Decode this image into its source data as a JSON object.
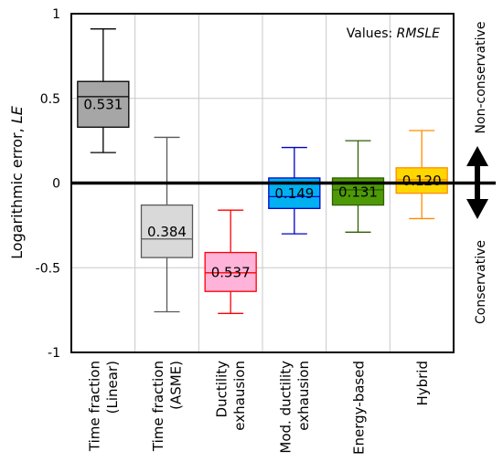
{
  "chart_data": {
    "type": "boxplot",
    "ylabel_prefix": "Logarithmic error, ",
    "ylabel_symbol": "LE",
    "ylim": [
      -1,
      1
    ],
    "yticks": [
      "1",
      "0.5",
      "0",
      "-0.5",
      "-1"
    ],
    "annotation_prefix": "Values: ",
    "annotation_metric": "RMSLE",
    "side_labels": {
      "upper": "Non-conservative",
      "lower": "Conservative"
    },
    "grid": true,
    "categories": [
      {
        "line1": "Time fraction",
        "line2": "(Linear)",
        "whisker_min": 0.18,
        "q1": 0.33,
        "median": 0.51,
        "q3": 0.6,
        "whisker_max": 0.91,
        "value_label": "0.531",
        "fill": "#a6a6a6",
        "stroke": "#000000"
      },
      {
        "line1": "Time fraction",
        "line2": "(ASME)",
        "whisker_min": -0.76,
        "q1": -0.44,
        "median": -0.33,
        "q3": -0.13,
        "whisker_max": 0.27,
        "value_label": "0.384",
        "fill": "#d9d9d9",
        "stroke": "#595959"
      },
      {
        "line1": "Ductility",
        "line2": "exhausion",
        "whisker_min": -0.77,
        "q1": -0.64,
        "median": -0.53,
        "q3": -0.41,
        "whisker_max": -0.16,
        "value_label": "0.537",
        "fill": "#ffb3d9",
        "stroke": "#ff0000"
      },
      {
        "line1": "Mod. ductility",
        "line2": "exhausion",
        "whisker_min": -0.3,
        "q1": -0.15,
        "median": -0.08,
        "q3": 0.03,
        "whisker_max": 0.21,
        "value_label": "0.149",
        "fill": "#00b0f0",
        "stroke": "#0000cc"
      },
      {
        "line1": "Energy-based",
        "line2": "",
        "whisker_min": -0.29,
        "q1": -0.13,
        "median": -0.04,
        "q3": 0.03,
        "whisker_max": 0.25,
        "value_label": "0.131",
        "fill": "#4e9a06",
        "stroke": "#2e5f00"
      },
      {
        "line1": "Hybrid",
        "line2": "",
        "whisker_min": -0.21,
        "q1": -0.06,
        "median": 0.02,
        "q3": 0.09,
        "whisker_max": 0.31,
        "value_label": "0.120",
        "fill": "#ffd700",
        "stroke": "#ff8c00"
      }
    ]
  }
}
